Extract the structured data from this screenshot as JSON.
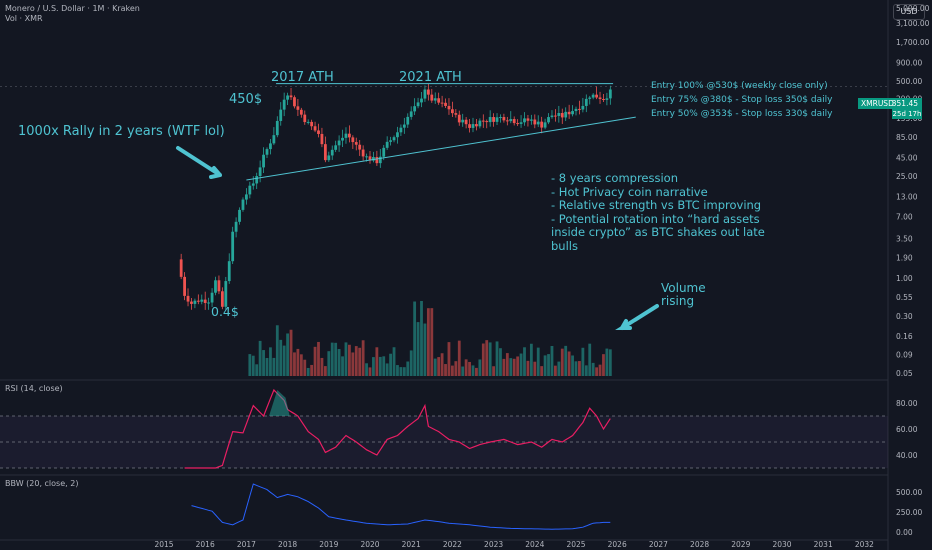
{
  "header": {
    "symbol_line": "Monero / U.S. Dollar · 1M · Kraken",
    "volume_line": "Vol · XMR",
    "currency_button": "USD"
  },
  "price_tag": {
    "ticker": "XMRUSD",
    "price": "351.45",
    "countdown": "25d 17h"
  },
  "panes": {
    "rsi_label": "RSI (14, close)",
    "bbw_label": "BBW (20, close, 2)"
  },
  "annotations": {
    "rally": "1000x Rally in 2 years (WTF lol)",
    "ath_2017": "2017 ATH",
    "ath_2021": "2021 ATH",
    "level_450": "450$",
    "low_04": "0.4$",
    "volume_rising": "Volume\nrising",
    "entries": [
      "Entry 100% @530$ (weekly close only)",
      "Entry 75% @380$ - Stop loss 350$ daily",
      "Entry 50% @353$ - Stop loss 330$ daily"
    ],
    "bullets": "- 8 years compression\n- Hot Privacy coin narrative\n- Relative strength vs BTC improving\n- Potential rotation into “hard assets inside crypto” as BTC shakes out late bulls"
  },
  "colors": {
    "background": "#131722",
    "up": "#26a69a",
    "down": "#ef5350",
    "annotation": "#4fc3d1",
    "rsi": "#e91e63",
    "bbw": "#2962ff"
  },
  "chart_data": {
    "type": "candlestick",
    "scale": "log",
    "price_ticks": [
      "5,000.00",
      "3,100.00",
      "1,700.00",
      "900.00",
      "500.00",
      "290.00",
      "155.00",
      "85.00",
      "45.00",
      "25.00",
      "13.00",
      "7.00",
      "3.50",
      "1.90",
      "1.00",
      "0.55",
      "0.30",
      "0.16",
      "0.09",
      "0.05"
    ],
    "x_ticks": [
      "2015",
      "2016",
      "2017",
      "2018",
      "2019",
      "2020",
      "2021",
      "2022",
      "2023",
      "2024",
      "2025",
      "2026",
      "2027",
      "2028",
      "2029",
      "2030",
      "2031",
      "2032"
    ],
    "rsi_ticks": [
      "80.00",
      "60.00",
      "40.00"
    ],
    "bbw_ticks": [
      "500.00",
      "250.00",
      "0.00"
    ],
    "price_anchors": [
      [
        "2015-05",
        1.8
      ],
      [
        "2015-07",
        0.6
      ],
      [
        "2015-09",
        0.45
      ],
      [
        "2015-11",
        0.5
      ],
      [
        "2016-02",
        0.5
      ],
      [
        "2016-04",
        0.9
      ],
      [
        "2016-06",
        0.4
      ],
      [
        "2016-09",
        4.0
      ],
      [
        "2016-12",
        12
      ],
      [
        "2017-03",
        20
      ],
      [
        "2017-06",
        45
      ],
      [
        "2017-09",
        95
      ],
      [
        "2017-12",
        300
      ],
      [
        "2018-01",
        350
      ],
      [
        "2018-04",
        200
      ],
      [
        "2018-07",
        130
      ],
      [
        "2018-10",
        95
      ],
      [
        "2018-12",
        45
      ],
      [
        "2019-06",
        95
      ],
      [
        "2019-09",
        65
      ],
      [
        "2019-12",
        45
      ],
      [
        "2020-03",
        40
      ],
      [
        "2020-06",
        68
      ],
      [
        "2020-09",
        100
      ],
      [
        "2020-12",
        160
      ],
      [
        "2021-03",
        240
      ],
      [
        "2021-05",
        400
      ],
      [
        "2021-06",
        300
      ],
      [
        "2021-09",
        250
      ],
      [
        "2021-12",
        210
      ],
      [
        "2022-02",
        160
      ],
      [
        "2022-06",
        120
      ],
      [
        "2022-09",
        140
      ],
      [
        "2022-12",
        150
      ],
      [
        "2023-04",
        160
      ],
      [
        "2023-08",
        140
      ],
      [
        "2023-12",
        145
      ],
      [
        "2024-03",
        125
      ],
      [
        "2024-06",
        170
      ],
      [
        "2024-09",
        165
      ],
      [
        "2024-12",
        200
      ],
      [
        "2025-03",
        240
      ],
      [
        "2025-05",
        320
      ],
      [
        "2025-07",
        310
      ],
      [
        "2025-09",
        290
      ],
      [
        "2025-11",
        351
      ]
    ],
    "rsi_anchors": [
      [
        "2015-07",
        30
      ],
      [
        "2016-04",
        30
      ],
      [
        "2016-06",
        32
      ],
      [
        "2016-09",
        58
      ],
      [
        "2016-12",
        57
      ],
      [
        "2017-03",
        78
      ],
      [
        "2017-06",
        70
      ],
      [
        "2017-09",
        90
      ],
      [
        "2017-12",
        82
      ],
      [
        "2018-01",
        75
      ],
      [
        "2018-04",
        70
      ],
      [
        "2018-07",
        58
      ],
      [
        "2018-10",
        52
      ],
      [
        "2018-12",
        42
      ],
      [
        "2019-03",
        46
      ],
      [
        "2019-06",
        55
      ],
      [
        "2019-09",
        50
      ],
      [
        "2019-12",
        44
      ],
      [
        "2020-03",
        40
      ],
      [
        "2020-06",
        52
      ],
      [
        "2020-09",
        55
      ],
      [
        "2020-12",
        62
      ],
      [
        "2021-03",
        68
      ],
      [
        "2021-05",
        78
      ],
      [
        "2021-06",
        62
      ],
      [
        "2021-09",
        58
      ],
      [
        "2021-12",
        52
      ],
      [
        "2022-03",
        50
      ],
      [
        "2022-06",
        45
      ],
      [
        "2022-09",
        48
      ],
      [
        "2022-12",
        50
      ],
      [
        "2023-04",
        52
      ],
      [
        "2023-08",
        48
      ],
      [
        "2023-12",
        50
      ],
      [
        "2024-03",
        46
      ],
      [
        "2024-06",
        52
      ],
      [
        "2024-09",
        50
      ],
      [
        "2024-12",
        55
      ],
      [
        "2025-03",
        65
      ],
      [
        "2025-05",
        76
      ],
      [
        "2025-07",
        70
      ],
      [
        "2025-09",
        60
      ],
      [
        "2025-11",
        68
      ]
    ],
    "bbw_anchors": [
      [
        "2015-09",
        330
      ],
      [
        "2016-03",
        260
      ],
      [
        "2016-06",
        120
      ],
      [
        "2016-09",
        90
      ],
      [
        "2016-12",
        150
      ],
      [
        "2017-03",
        600
      ],
      [
        "2017-07",
        530
      ],
      [
        "2017-10",
        430
      ],
      [
        "2018-01",
        470
      ],
      [
        "2018-04",
        440
      ],
      [
        "2018-07",
        380
      ],
      [
        "2018-10",
        300
      ],
      [
        "2019-01",
        190
      ],
      [
        "2019-06",
        150
      ],
      [
        "2019-12",
        110
      ],
      [
        "2020-06",
        90
      ],
      [
        "2020-12",
        100
      ],
      [
        "2021-03",
        130
      ],
      [
        "2021-05",
        150
      ],
      [
        "2021-09",
        130
      ],
      [
        "2021-12",
        110
      ],
      [
        "2022-06",
        90
      ],
      [
        "2022-12",
        60
      ],
      [
        "2023-06",
        45
      ],
      [
        "2023-12",
        40
      ],
      [
        "2024-06",
        35
      ],
      [
        "2024-12",
        40
      ],
      [
        "2025-03",
        60
      ],
      [
        "2025-06",
        110
      ],
      [
        "2025-09",
        120
      ],
      [
        "2025-11",
        120
      ]
    ]
  }
}
